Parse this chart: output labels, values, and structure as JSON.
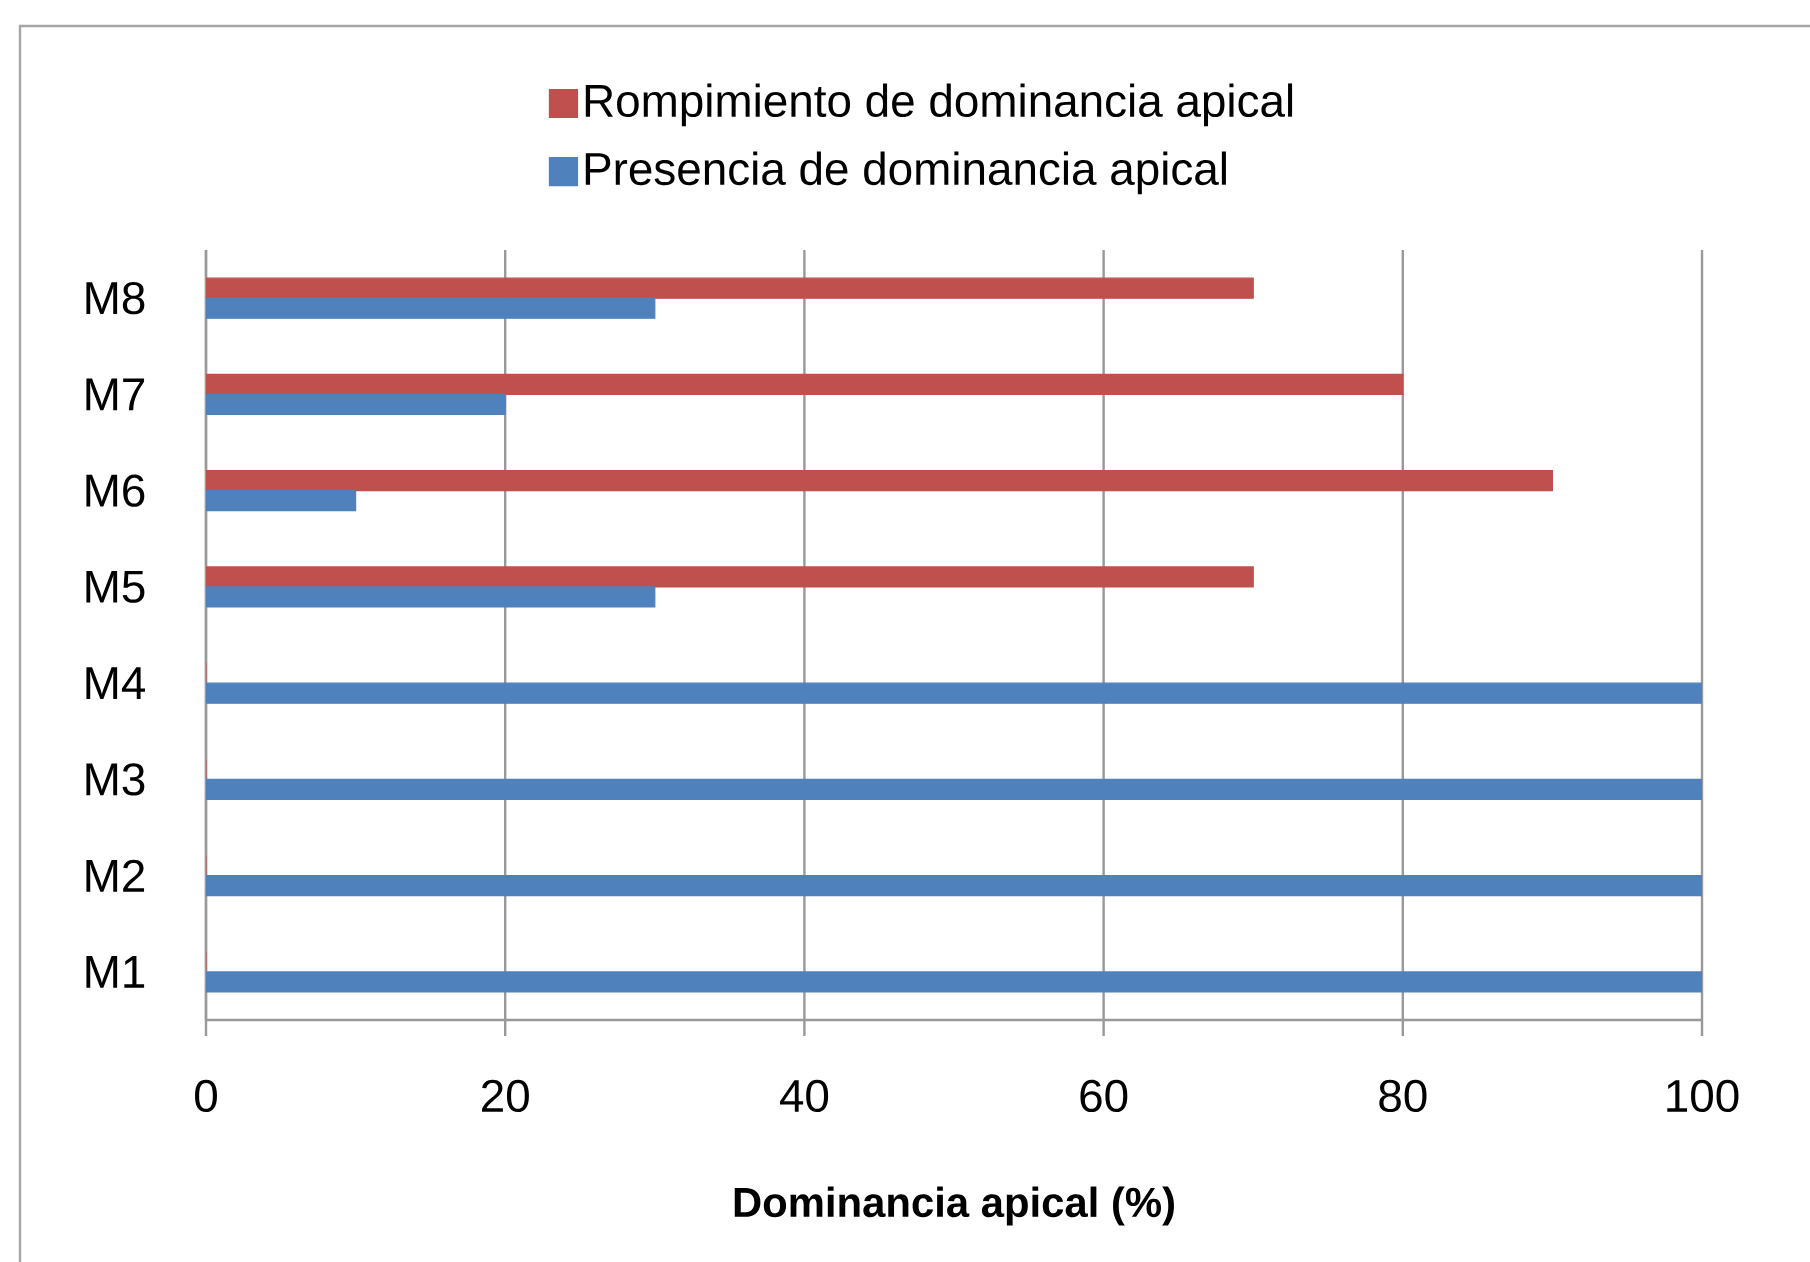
{
  "chart_data": {
    "type": "bar",
    "orientation": "horizontal",
    "categories": [
      "M8",
      "M7",
      "M6",
      "M5",
      "M4",
      "M3",
      "M2",
      "M1"
    ],
    "series": [
      {
        "name": "Rompimiento de dominancia apical",
        "color": "#c0504d",
        "values": [
          70,
          80,
          90,
          70,
          0,
          0,
          0,
          0
        ]
      },
      {
        "name": "Presencia de dominancia apical",
        "color": "#4f81bd",
        "values": [
          30,
          20,
          10,
          30,
          100,
          100,
          100,
          100
        ]
      }
    ],
    "xlabel": "Dominancia apical (%)",
    "xlim": [
      0,
      100
    ],
    "xticks": [
      0,
      20,
      40,
      60,
      80,
      100
    ],
    "grid": "x",
    "legend": "top"
  }
}
